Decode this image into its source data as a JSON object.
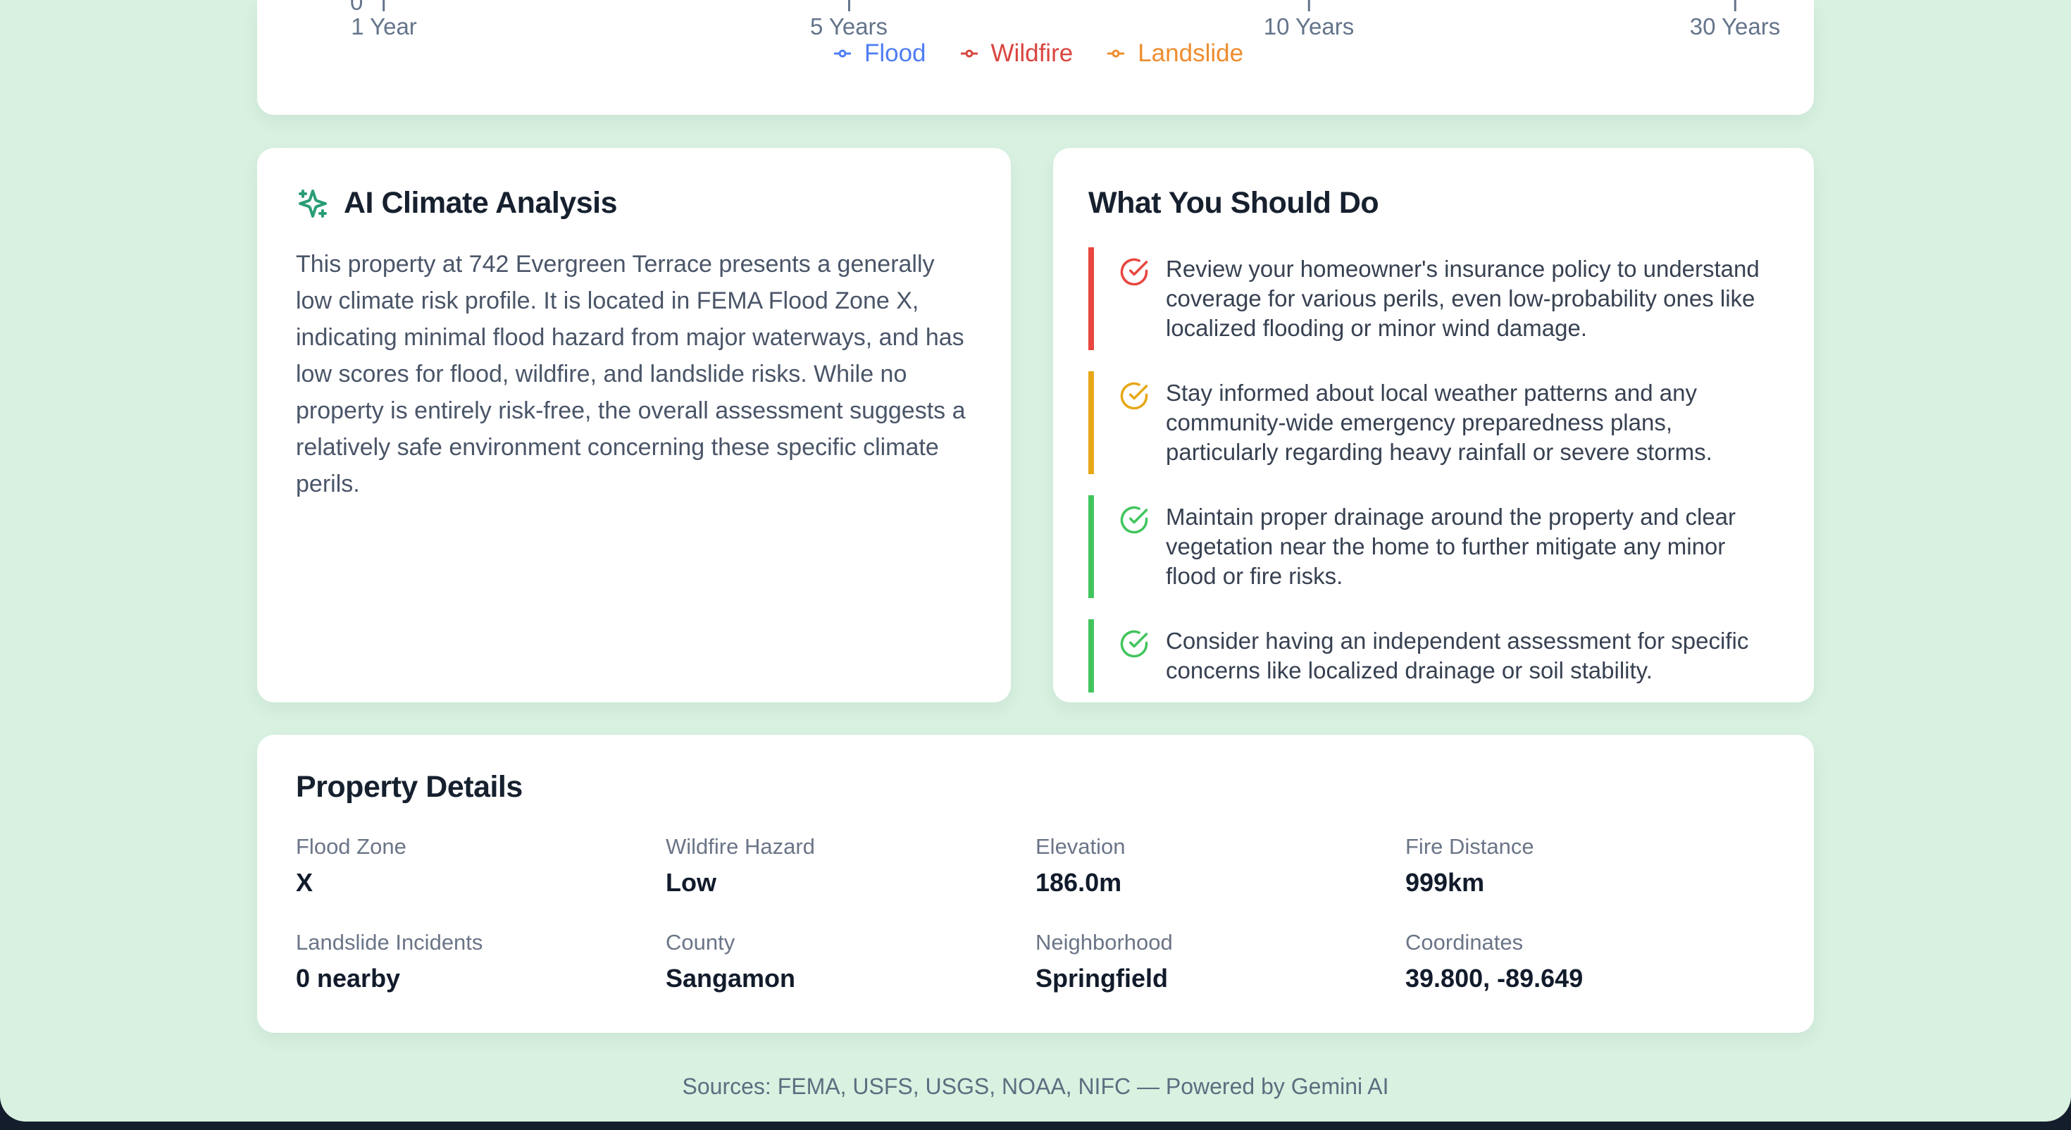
{
  "chart": {
    "y_zero_label": "0",
    "x_ticks": [
      "1 Year",
      "5 Years",
      "10 Years",
      "30 Years"
    ],
    "legend": [
      {
        "label": "Flood",
        "color": "#4f7df3"
      },
      {
        "label": "Wildfire",
        "color": "#d9453f"
      },
      {
        "label": "Landslide",
        "color": "#ee8c2f"
      }
    ]
  },
  "analysis_card": {
    "title": "AI Climate Analysis",
    "body": "This property at 742 Evergreen Terrace presents a generally low climate risk profile. It is located in FEMA Flood Zone X, indicating minimal flood hazard from major waterways, and has low scores for flood, wildfire, and landslide risks. While no property is entirely risk-free, the overall assessment suggests a relatively safe environment concerning these specific climate perils."
  },
  "recommendations_card": {
    "title": "What You Should Do",
    "items": [
      {
        "color": "#e8463f",
        "text": "Review your homeowner's insurance policy to understand coverage for various perils, even low-probability ones like localized flooding or minor wind damage."
      },
      {
        "color": "#e6a817",
        "text": "Stay informed about local weather patterns and any community-wide emergency preparedness plans, particularly regarding heavy rainfall or severe storms."
      },
      {
        "color": "#42c55d",
        "text": "Maintain proper drainage around the property and clear vegetation near the home to further mitigate any minor flood or fire risks."
      },
      {
        "color": "#42c55d",
        "text": "Consider having an independent assessment for specific concerns like localized drainage or soil stability."
      }
    ]
  },
  "property_details": {
    "title": "Property Details",
    "fields": [
      {
        "label": "Flood Zone",
        "value": "X"
      },
      {
        "label": "Wildfire Hazard",
        "value": "Low"
      },
      {
        "label": "Elevation",
        "value": "186.0m"
      },
      {
        "label": "Fire Distance",
        "value": "999km"
      },
      {
        "label": "Landslide Incidents",
        "value": "0 nearby"
      },
      {
        "label": "County",
        "value": "Sangamon"
      },
      {
        "label": "Neighborhood",
        "value": "Springfield"
      },
      {
        "label": "Coordinates",
        "value": "39.800, -89.649"
      }
    ]
  },
  "footer": {
    "text": "Sources: FEMA, USFS, USGS, NOAA, NIFC — Powered by Gemini AI"
  },
  "colors": {
    "background": "#d8f1e1",
    "card": "#ffffff",
    "accent_teal": "#2a9d78",
    "risk_red": "#e8463f",
    "risk_amber": "#e6a817",
    "risk_green": "#42c55d",
    "flood_blue": "#4f7df3",
    "wildfire_red": "#d9453f",
    "landslide_orange": "#ee8c2f"
  }
}
